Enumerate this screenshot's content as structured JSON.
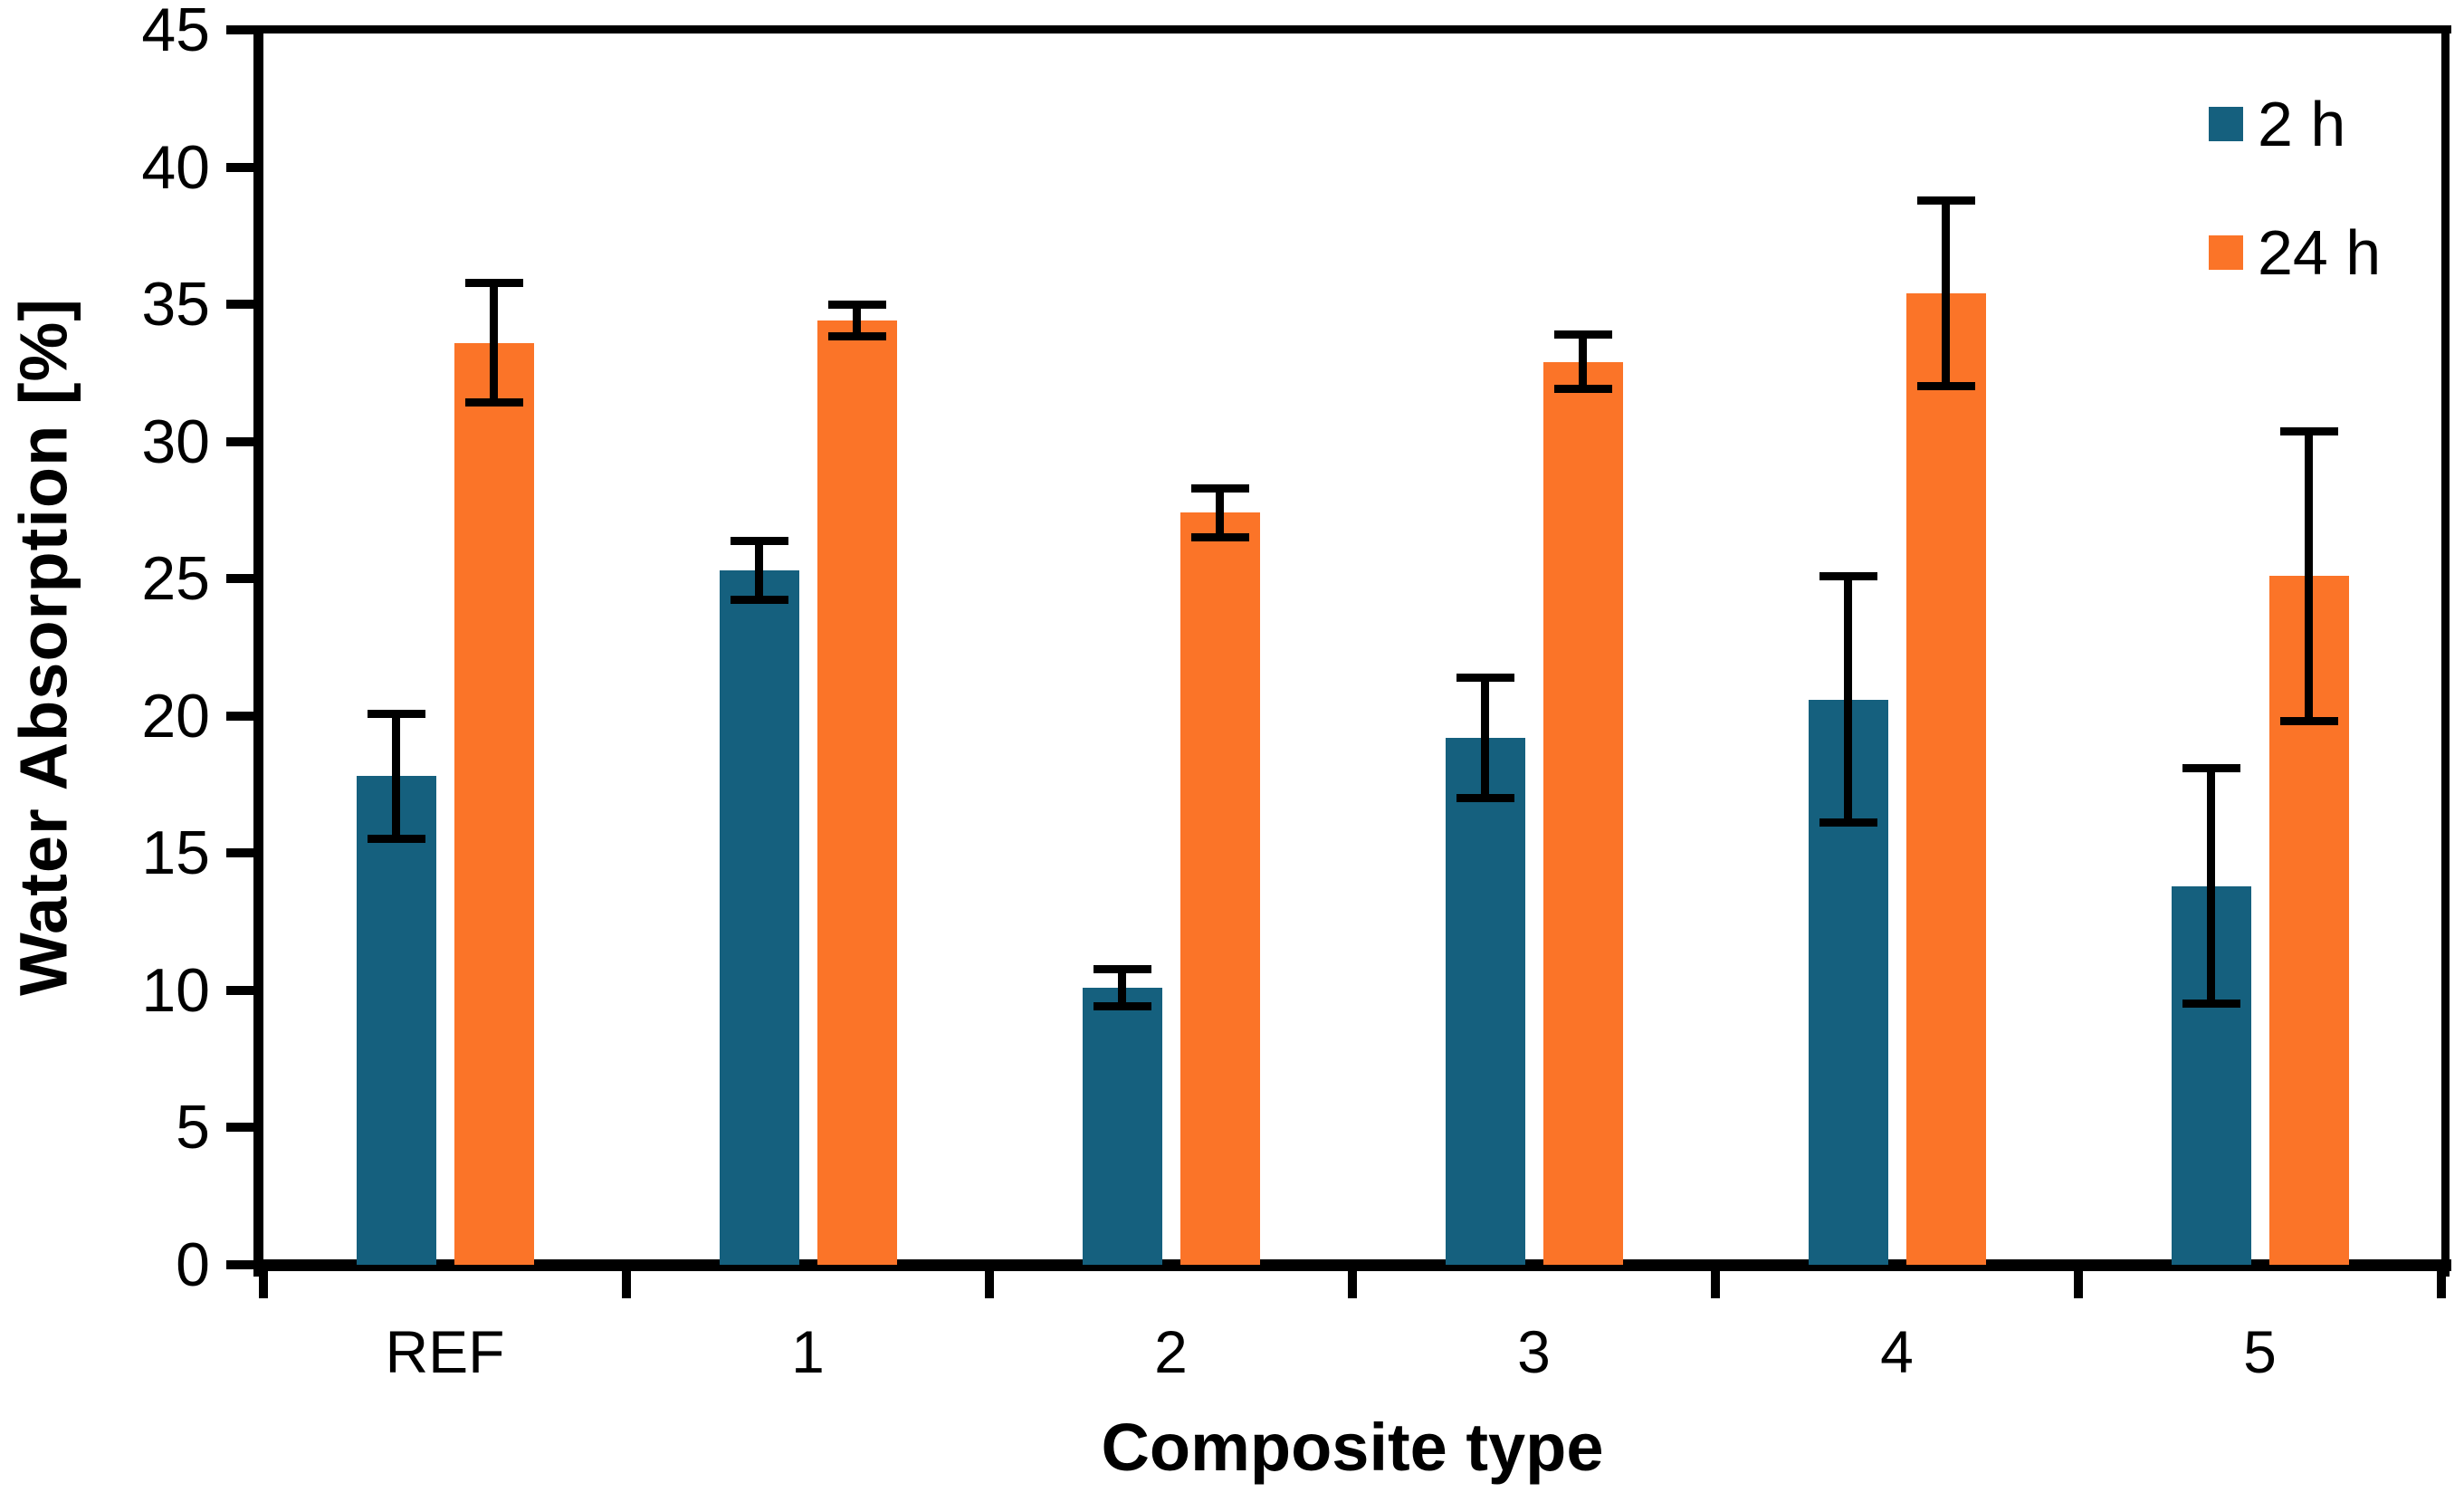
{
  "chart_data": {
    "type": "bar",
    "title": "",
    "categories": [
      "REF",
      "1",
      "2",
      "3",
      "4",
      "5"
    ],
    "series": [
      {
        "name": "2 h",
        "color": "#15607E",
        "values": [
          17.8,
          25.3,
          10.1,
          19.2,
          20.6,
          13.8
        ],
        "errors": [
          2.2,
          1.0,
          0.6,
          2.1,
          4.4,
          4.2
        ]
      },
      {
        "name": "24 h",
        "color": "#FB7428",
        "values": [
          33.6,
          34.4,
          27.4,
          32.9,
          35.4,
          25.1
        ],
        "errors": [
          2.1,
          0.5,
          0.8,
          0.9,
          3.3,
          5.2
        ]
      }
    ],
    "xlabel": "Composite type",
    "ylabel": "Water Absorption [%]",
    "ylim": [
      0,
      45
    ],
    "yticks": [
      0,
      5,
      10,
      15,
      20,
      25,
      30,
      35,
      40,
      45
    ],
    "grid": false,
    "legend_position": "top-right",
    "error_bars": true,
    "colors": {
      "axis": "#000000",
      "error_bar": "#000000",
      "background": "#FFFFFF"
    }
  }
}
